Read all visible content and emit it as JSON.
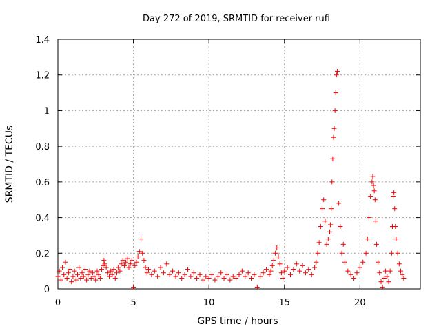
{
  "chart_data": {
    "type": "scatter",
    "title": "Day 272 of 2019, SRMTID for receiver rufi",
    "xlabel": "GPS time / hours",
    "ylabel": "SRMTID / TECUs",
    "xlim": [
      0,
      24
    ],
    "ylim": [
      0,
      1.4
    ],
    "x_ticks": [
      0,
      5,
      10,
      15,
      20
    ],
    "x_tick_labels": [
      "0",
      "5",
      "10",
      "15",
      "20"
    ],
    "y_ticks": [
      0,
      0.2,
      0.4,
      0.6,
      0.8,
      1,
      1.2,
      1.4
    ],
    "y_tick_labels": [
      "0",
      "0.2",
      "0.4",
      "0.6",
      "0.8",
      "1",
      "1.2",
      "1.4"
    ],
    "grid": true,
    "marker": "+",
    "series_color": "#ff0000",
    "series": [
      {
        "name": "SRMTID",
        "x": [
          0.0,
          0.1,
          0.2,
          0.3,
          0.4,
          0.5,
          0.6,
          0.7,
          0.8,
          0.9,
          1.0,
          1.1,
          1.2,
          1.3,
          1.4,
          1.5,
          1.6,
          1.7,
          1.8,
          1.9,
          2.0,
          2.1,
          2.2,
          2.3,
          2.4,
          2.5,
          2.6,
          2.7,
          2.8,
          2.9,
          3.0,
          3.05,
          3.1,
          3.2,
          3.3,
          3.4,
          3.5,
          3.6,
          3.7,
          3.8,
          3.9,
          4.0,
          4.1,
          4.2,
          4.3,
          4.4,
          4.5,
          4.6,
          4.7,
          4.8,
          4.9,
          5.0,
          5.1,
          5.2,
          5.3,
          5.4,
          5.5,
          5.6,
          5.7,
          5.8,
          5.9,
          6.0,
          6.2,
          6.4,
          6.6,
          6.8,
          7.0,
          7.2,
          7.4,
          7.6,
          7.8,
          8.0,
          8.2,
          8.4,
          8.6,
          8.8,
          9.0,
          9.2,
          9.4,
          9.6,
          9.8,
          10.0,
          10.2,
          10.4,
          10.6,
          10.8,
          11.0,
          11.2,
          11.4,
          11.6,
          11.8,
          12.0,
          12.2,
          12.4,
          12.6,
          12.8,
          13.0,
          13.2,
          13.4,
          13.6,
          13.8,
          14.0,
          14.1,
          14.2,
          14.3,
          14.4,
          14.5,
          14.6,
          14.7,
          14.8,
          14.9,
          15.0,
          15.2,
          15.4,
          15.6,
          15.8,
          16.0,
          16.2,
          16.4,
          16.6,
          16.8,
          17.0,
          17.1,
          17.2,
          17.3,
          17.4,
          17.5,
          17.6,
          17.7,
          17.8,
          17.9,
          18.0,
          18.05,
          18.1,
          18.15,
          18.2,
          18.25,
          18.3,
          18.35,
          18.4,
          18.45,
          18.5,
          18.6,
          18.7,
          18.8,
          18.9,
          19.0,
          19.2,
          19.4,
          19.6,
          19.8,
          20.0,
          20.2,
          20.4,
          20.5,
          20.6,
          20.7,
          20.8,
          20.85,
          20.9,
          20.95,
          21.0,
          21.05,
          21.1,
          21.2,
          21.3,
          21.4,
          21.5,
          21.6,
          21.7,
          21.8,
          21.9,
          22.0,
          22.1,
          22.15,
          22.2,
          22.25,
          22.3,
          22.35,
          22.4,
          22.5,
          22.6,
          22.7,
          22.8,
          22.9
        ],
        "y": [
          0.07,
          0.1,
          0.05,
          0.12,
          0.08,
          0.15,
          0.06,
          0.09,
          0.11,
          0.04,
          0.07,
          0.1,
          0.05,
          0.08,
          0.12,
          0.06,
          0.09,
          0.07,
          0.11,
          0.05,
          0.08,
          0.1,
          0.06,
          0.09,
          0.07,
          0.05,
          0.1,
          0.08,
          0.06,
          0.11,
          0.13,
          0.16,
          0.14,
          0.12,
          0.09,
          0.07,
          0.1,
          0.08,
          0.11,
          0.06,
          0.09,
          0.12,
          0.1,
          0.14,
          0.16,
          0.13,
          0.15,
          0.17,
          0.12,
          0.14,
          0.16,
          0.01,
          0.13,
          0.15,
          0.18,
          0.21,
          0.28,
          0.2,
          0.16,
          0.12,
          0.09,
          0.11,
          0.08,
          0.1,
          0.07,
          0.12,
          0.09,
          0.14,
          0.08,
          0.1,
          0.07,
          0.09,
          0.06,
          0.08,
          0.11,
          0.07,
          0.09,
          0.06,
          0.08,
          0.05,
          0.07,
          0.06,
          0.08,
          0.05,
          0.07,
          0.09,
          0.06,
          0.08,
          0.05,
          0.07,
          0.06,
          0.08,
          0.1,
          0.07,
          0.09,
          0.06,
          0.08,
          0.01,
          0.07,
          0.09,
          0.11,
          0.08,
          0.1,
          0.13,
          0.16,
          0.2,
          0.23,
          0.18,
          0.14,
          0.09,
          0.06,
          0.1,
          0.12,
          0.08,
          0.11,
          0.14,
          0.1,
          0.13,
          0.09,
          0.11,
          0.08,
          0.12,
          0.15,
          0.2,
          0.26,
          0.35,
          0.45,
          0.5,
          0.38,
          0.25,
          0.28,
          0.32,
          0.36,
          0.45,
          0.6,
          0.73,
          0.85,
          0.9,
          1.0,
          1.1,
          1.2,
          1.22,
          0.48,
          0.35,
          0.2,
          0.25,
          0.15,
          0.1,
          0.08,
          0.06,
          0.09,
          0.12,
          0.15,
          0.2,
          0.28,
          0.4,
          0.52,
          0.6,
          0.63,
          0.58,
          0.55,
          0.5,
          0.38,
          0.25,
          0.15,
          0.09,
          0.04,
          0.01,
          0.06,
          0.1,
          0.07,
          0.04,
          0.1,
          0.2,
          0.35,
          0.52,
          0.54,
          0.45,
          0.35,
          0.28,
          0.2,
          0.14,
          0.1,
          0.08,
          0.06
        ]
      }
    ]
  }
}
